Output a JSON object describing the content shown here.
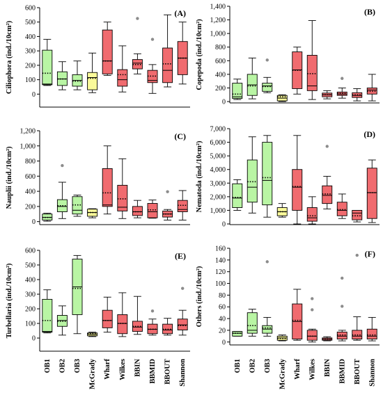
{
  "colors": {
    "green": "#b9f5a4",
    "yellow": "#fafa9a",
    "red": "#f06b6f",
    "stroke": "#000000",
    "outlier": "#8c8c8c"
  },
  "categories": [
    "OB1",
    "OB2",
    "OB3",
    "McGrady",
    "Wharf",
    "Wilkes",
    "BBIN",
    "BBMID",
    "BBOUT",
    "Shannon"
  ],
  "category_colors": [
    "green",
    "green",
    "green",
    "yellow",
    "red",
    "red",
    "red",
    "red",
    "red",
    "red"
  ],
  "chart_data": [
    {
      "type": "box",
      "panel": "(A)",
      "ylabel": "Ciliophora (ind./10cm²)",
      "ylim": [
        -90,
        600
      ],
      "yticks": [
        0,
        100,
        200,
        300,
        400,
        500,
        600
      ],
      "tick_labels": [
        "0",
        "100",
        "200",
        "300",
        "400",
        "500",
        "600"
      ],
      "boxes": [
        {
          "min": 60,
          "q1": 65,
          "median": 70,
          "mean": 145,
          "q3": 305,
          "max": 380,
          "outliers": []
        },
        {
          "min": 30,
          "q1": 60,
          "median": 105,
          "mean": 105,
          "q3": 155,
          "max": 225,
          "outliers": []
        },
        {
          "min": 30,
          "q1": 55,
          "median": 95,
          "mean": 90,
          "q3": 135,
          "max": 230,
          "outliers": []
        },
        {
          "min": 10,
          "q1": 30,
          "median": 115,
          "mean": 110,
          "q3": 150,
          "max": 285,
          "outliers": []
        },
        {
          "min": 130,
          "q1": 140,
          "median": 230,
          "mean": 230,
          "q3": 445,
          "max": 500,
          "outliers": []
        },
        {
          "min": 15,
          "q1": 55,
          "median": 100,
          "mean": 135,
          "q3": 170,
          "max": 335,
          "outliers": []
        },
        {
          "min": 140,
          "q1": 175,
          "median": 215,
          "mean": 205,
          "q3": 240,
          "max": 280,
          "outliers": [
            525
          ]
        },
        {
          "min": 5,
          "q1": 80,
          "median": 95,
          "mean": 125,
          "q3": 165,
          "max": 205,
          "outliers": [
            380
          ]
        },
        {
          "min": 50,
          "q1": 80,
          "median": 165,
          "mean": 210,
          "q3": 320,
          "max": 550,
          "outliers": []
        },
        {
          "min": 70,
          "q1": 135,
          "median": 250,
          "mean": 250,
          "q3": 365,
          "max": 500,
          "outliers": []
        }
      ]
    },
    {
      "type": "box",
      "panel": "(B)",
      "ylabel": "Copepoda (ind./10cm²)",
      "ylim": [
        -20,
        1400
      ],
      "yticks": [
        0,
        200,
        400,
        600,
        800,
        1000,
        1200,
        1400
      ],
      "tick_labels": [
        "0",
        "200",
        "400",
        "600",
        "800",
        "1,000",
        "1,200",
        "1,400"
      ],
      "boxes": [
        {
          "min": 30,
          "q1": 45,
          "median": 70,
          "mean": 110,
          "q3": 270,
          "max": 330,
          "outliers": []
        },
        {
          "min": 40,
          "q1": 90,
          "median": 245,
          "mean": 230,
          "q3": 400,
          "max": 640,
          "outliers": []
        },
        {
          "min": 130,
          "q1": 150,
          "median": 230,
          "mean": 220,
          "q3": 270,
          "max": 355,
          "outliers": [
            610
          ]
        },
        {
          "min": 0,
          "q1": 10,
          "median": 50,
          "mean": 70,
          "q3": 90,
          "max": 100,
          "outliers": []
        },
        {
          "min": 110,
          "q1": 190,
          "median": 465,
          "mean": 460,
          "q3": 730,
          "max": 800,
          "outliers": []
        },
        {
          "min": 30,
          "q1": 160,
          "median": 230,
          "mean": 410,
          "q3": 680,
          "max": 1190,
          "outliers": []
        },
        {
          "min": 40,
          "q1": 70,
          "median": 100,
          "mean": 100,
          "q3": 125,
          "max": 160,
          "outliers": []
        },
        {
          "min": 50,
          "q1": 90,
          "median": 110,
          "mean": 120,
          "q3": 140,
          "max": 200,
          "outliers": [
            340
          ]
        },
        {
          "min": 10,
          "q1": 60,
          "median": 90,
          "mean": 100,
          "q3": 130,
          "max": 190,
          "outliers": []
        },
        {
          "min": 10,
          "q1": 110,
          "median": 170,
          "mean": 150,
          "q3": 200,
          "max": 400,
          "outliers": []
        }
      ]
    },
    {
      "type": "box",
      "panel": "(C)",
      "ylabel": "Nauplii (ind./10cm²)",
      "ylim": [
        -40,
        1200
      ],
      "yticks": [
        0,
        200,
        400,
        600,
        800,
        1000,
        1200
      ],
      "tick_labels": [
        "0",
        "200",
        "400",
        "600",
        "800",
        "1,000",
        "1,200"
      ],
      "boxes": [
        {
          "min": 5,
          "q1": 20,
          "median": 55,
          "mean": 55,
          "q3": 100,
          "max": 110,
          "outliers": []
        },
        {
          "min": 40,
          "q1": 130,
          "median": 200,
          "mean": 210,
          "q3": 290,
          "max": 520,
          "outliers": [
            740
          ]
        },
        {
          "min": 70,
          "q1": 100,
          "median": 150,
          "mean": 220,
          "q3": 330,
          "max": 350,
          "outliers": []
        },
        {
          "min": 50,
          "q1": 70,
          "median": 120,
          "mean": 120,
          "q3": 165,
          "max": 170,
          "outliers": []
        },
        {
          "min": 100,
          "q1": 200,
          "median": 220,
          "mean": 380,
          "q3": 700,
          "max": 1000,
          "outliers": []
        },
        {
          "min": 40,
          "q1": 140,
          "median": 190,
          "mean": 300,
          "q3": 480,
          "max": 830,
          "outliers": []
        },
        {
          "min": 50,
          "q1": 80,
          "median": 130,
          "mean": 130,
          "q3": 200,
          "max": 280,
          "outliers": []
        },
        {
          "min": 45,
          "q1": 50,
          "median": 130,
          "mean": 155,
          "q3": 240,
          "max": 285,
          "outliers": []
        },
        {
          "min": 20,
          "q1": 60,
          "median": 100,
          "mean": 100,
          "q3": 140,
          "max": 160,
          "outliers": [
            395
          ]
        },
        {
          "min": 20,
          "q1": 130,
          "median": 160,
          "mean": 215,
          "q3": 280,
          "max": 410,
          "outliers": []
        }
      ]
    },
    {
      "type": "box",
      "panel": "(D)",
      "ylabel": "Nematoda (ind./10cm²)",
      "ylim": [
        -50,
        7000
      ],
      "yticks": [
        0,
        1000,
        2000,
        3000,
        4000,
        5000,
        6000,
        7000
      ],
      "tick_labels": [
        "0",
        "1,000",
        "2,000",
        "3,000",
        "4,000",
        "5,000",
        "6,000",
        "7,000"
      ],
      "boxes": [
        {
          "min": 1000,
          "q1": 1200,
          "median": 1900,
          "mean": 1950,
          "q3": 2950,
          "max": 3250,
          "outliers": []
        },
        {
          "min": 800,
          "q1": 1600,
          "median": 2700,
          "mean": 3100,
          "q3": 4700,
          "max": 6400,
          "outliers": []
        },
        {
          "min": 500,
          "q1": 1400,
          "median": 3200,
          "mean": 3400,
          "q3": 6000,
          "max": 6500,
          "outliers": []
        },
        {
          "min": 500,
          "q1": 600,
          "median": 900,
          "mean": 900,
          "q3": 1200,
          "max": 1500,
          "outliers": []
        },
        {
          "min": 0,
          "q1": 1000,
          "median": 2700,
          "mean": 2750,
          "q3": 4000,
          "max": 6500,
          "outliers": []
        },
        {
          "min": 0,
          "q1": 200,
          "median": 450,
          "mean": 600,
          "q3": 1200,
          "max": 2000,
          "outliers": []
        },
        {
          "min": 1100,
          "q1": 1500,
          "median": 2100,
          "mean": 2200,
          "q3": 2800,
          "max": 3500,
          "outliers": [
            5700
          ]
        },
        {
          "min": 400,
          "q1": 600,
          "median": 1000,
          "mean": 1050,
          "q3": 1600,
          "max": 2200,
          "outliers": []
        },
        {
          "min": 150,
          "q1": 300,
          "median": 800,
          "mean": 600,
          "q3": 1000,
          "max": 1000,
          "outliers": []
        },
        {
          "min": 100,
          "q1": 400,
          "median": 2300,
          "mean": 2300,
          "q3": 4100,
          "max": 4700,
          "outliers": []
        }
      ]
    },
    {
      "type": "box",
      "panel": "(E)",
      "ylabel": "Turbellaria (ind./10cm²)",
      "ylim": [
        -90,
        600
      ],
      "yticks": [
        0,
        100,
        200,
        300,
        400,
        500,
        600
      ],
      "tick_labels": [
        "0",
        "100",
        "200",
        "300",
        "400",
        "500",
        "600"
      ],
      "boxes": [
        {
          "min": 35,
          "q1": 40,
          "median": 45,
          "mean": 120,
          "q3": 265,
          "max": 330,
          "outliers": []
        },
        {
          "min": 20,
          "q1": 80,
          "median": 120,
          "mean": 115,
          "q3": 155,
          "max": 220,
          "outliers": []
        },
        {
          "min": 30,
          "q1": 160,
          "median": 350,
          "mean": 340,
          "q3": 540,
          "max": 565,
          "outliers": []
        },
        {
          "min": 10,
          "q1": 15,
          "median": 25,
          "mean": 30,
          "q3": 35,
          "max": 40,
          "outliers": []
        },
        {
          "min": 40,
          "q1": 70,
          "median": 120,
          "mean": 120,
          "q3": 190,
          "max": 280,
          "outliers": []
        },
        {
          "min": 10,
          "q1": 30,
          "median": 100,
          "mean": 100,
          "q3": 160,
          "max": 310,
          "outliers": []
        },
        {
          "min": 25,
          "q1": 45,
          "median": 75,
          "mean": 80,
          "q3": 115,
          "max": 285,
          "outliers": []
        },
        {
          "min": 20,
          "q1": 30,
          "median": 60,
          "mean": 60,
          "q3": 95,
          "max": 130,
          "outliers": [
            185
          ]
        },
        {
          "min": 20,
          "q1": 30,
          "median": 55,
          "mean": 60,
          "q3": 95,
          "max": 135,
          "outliers": []
        },
        {
          "min": 20,
          "q1": 55,
          "median": 90,
          "mean": 85,
          "q3": 130,
          "max": 190,
          "outliers": [
            340
          ]
        }
      ]
    },
    {
      "type": "box",
      "panel": "(F)",
      "ylabel": "Others (ind./10cm²)",
      "ylim": [
        -5,
        160
      ],
      "yticks": [
        0,
        20,
        40,
        60,
        80,
        100,
        120,
        140,
        160
      ],
      "tick_labels": [
        "0",
        "20",
        "40",
        "60",
        "80",
        "100",
        "120",
        "140",
        "160"
      ],
      "boxes": [
        {
          "min": 10,
          "q1": 10,
          "median": 15,
          "mean": 15,
          "q3": 18,
          "max": 18,
          "outliers": []
        },
        {
          "min": 10,
          "q1": 15,
          "median": 20,
          "mean": 28,
          "q3": 50,
          "max": 56,
          "outliers": []
        },
        {
          "min": 10,
          "q1": 15,
          "median": 22,
          "mean": 24,
          "q3": 28,
          "max": 42,
          "outliers": [
            137
          ]
        },
        {
          "min": 2,
          "q1": 3,
          "median": 7,
          "mean": 6,
          "q3": 10,
          "max": 12,
          "outliers": []
        },
        {
          "min": 3,
          "q1": 5,
          "median": 35,
          "mean": 37,
          "q3": 65,
          "max": 90,
          "outliers": []
        },
        {
          "min": 0,
          "q1": 3,
          "median": 10,
          "mean": 10,
          "q3": 20,
          "max": 22,
          "outliers": [
            74,
            55
          ]
        },
        {
          "min": 2,
          "q1": 3,
          "median": 5,
          "mean": 5,
          "q3": 7,
          "max": 9,
          "outliers": []
        },
        {
          "min": 2,
          "q1": 5,
          "median": 10,
          "mean": 12,
          "q3": 17,
          "max": 20,
          "outliers": [
            109,
            61
          ]
        },
        {
          "min": 3,
          "q1": 5,
          "median": 10,
          "mean": 12,
          "q3": 20,
          "max": 43,
          "outliers": [
            148
          ]
        },
        {
          "min": 2,
          "q1": 5,
          "median": 10,
          "mean": 12,
          "q3": 22,
          "max": 42,
          "outliers": []
        }
      ]
    }
  ]
}
